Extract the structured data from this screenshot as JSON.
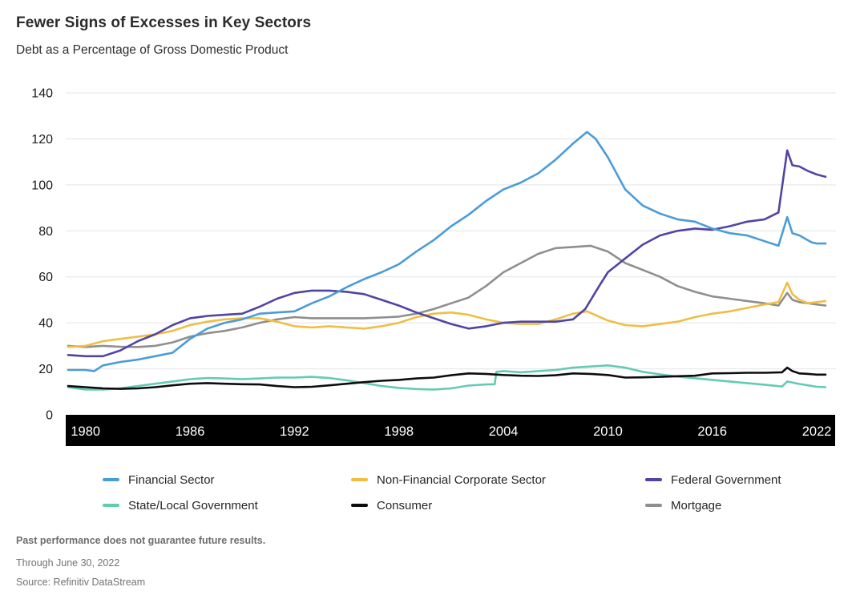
{
  "title": "Fewer Signs of Excesses in Key Sectors",
  "subtitle": "Debt as a Percentage of Gross Domestic Product",
  "footer": {
    "disclaimer": "Past performance does not guarantee future results.",
    "through": "Through June 30, 2022",
    "source": "Source: Refinitiv DataStream"
  },
  "legend": {
    "items": [
      {
        "label": "Financial Sector",
        "color": "#4A9CD9"
      },
      {
        "label": "Non-Financial Corporate Sector",
        "color": "#F0BE45"
      },
      {
        "label": "Federal Government",
        "color": "#4F45A4"
      },
      {
        "label": "State/Local Government",
        "color": "#63CBB2"
      },
      {
        "label": "Consumer",
        "color": "#0D0D0D"
      },
      {
        "label": "Mortgage",
        "color": "#8F8F8F"
      }
    ]
  },
  "chart_data": {
    "type": "line",
    "title": "Fewer Signs of Excesses in Key Sectors",
    "subtitle": "Debt as a Percentage of Gross Domestic Product",
    "xlabel": "",
    "ylabel": "Debt as % of GDP",
    "ylim": [
      0,
      140
    ],
    "x_range_years": [
      1979,
      2022.5
    ],
    "y_ticks": [
      0,
      20,
      40,
      60,
      80,
      100,
      120,
      140
    ],
    "x_ticks": [
      1980,
      1986,
      1992,
      1998,
      2004,
      2010,
      2016,
      2022
    ],
    "grid": "horizontal",
    "gridline_color": "#E4E4E4",
    "axis_band_color": "#000000",
    "axis_band_text_color": "#FFFFFF",
    "legend_position": "bottom",
    "series": [
      {
        "name": "Financial Sector",
        "color": "#4A9CD9",
        "x": [
          1979,
          1980,
          1980.5,
          1981,
          1982,
          1983,
          1984,
          1985,
          1986,
          1987,
          1988,
          1989,
          1990,
          1991,
          1992,
          1993,
          1994,
          1995,
          1996,
          1997,
          1998,
          1999,
          2000,
          2001,
          2002,
          2003,
          2004,
          2005,
          2006,
          2007,
          2008,
          2008.8,
          2009.3,
          2010,
          2011,
          2012,
          2013,
          2014,
          2015,
          2016,
          2017,
          2018,
          2019,
          2019.8,
          2020.3,
          2020.6,
          2021,
          2021.7,
          2022,
          2022.5
        ],
        "values": [
          19.5,
          19.5,
          19,
          21.5,
          23,
          24,
          25.5,
          27,
          33,
          37.5,
          40,
          41.5,
          44,
          44.5,
          45,
          48.5,
          51.5,
          55.5,
          59,
          62,
          65.5,
          71,
          76,
          82,
          87,
          93,
          98,
          101,
          105,
          111,
          118,
          123,
          120,
          112,
          98,
          91,
          87.5,
          85,
          84,
          81,
          79,
          78,
          75.5,
          73.5,
          86,
          79,
          78,
          75,
          74.5,
          74.5
        ]
      },
      {
        "name": "Non-Financial Corporate Sector",
        "color": "#F0BE45",
        "x": [
          1979,
          1980,
          1981,
          1982,
          1983,
          1984,
          1985,
          1986,
          1987,
          1988,
          1989,
          1990,
          1991,
          1992,
          1993,
          1994,
          1995,
          1996,
          1997,
          1998,
          1999,
          2000,
          2001,
          2002,
          2003,
          2004,
          2005,
          2006,
          2007,
          2008,
          2008.8,
          2010,
          2011,
          2012,
          2013,
          2014,
          2015,
          2016,
          2017,
          2018,
          2019,
          2019.8,
          2020.3,
          2020.6,
          2021,
          2021.5,
          2022,
          2022.5
        ],
        "values": [
          29.5,
          30,
          32,
          33,
          34,
          35,
          36.5,
          39,
          40.5,
          41.5,
          42,
          42,
          40.5,
          38.5,
          38,
          38.5,
          38,
          37.5,
          38.5,
          40,
          42.5,
          44,
          44.5,
          43.5,
          41.5,
          40,
          39.5,
          39.5,
          41.5,
          44,
          45,
          41,
          39,
          38.5,
          39.5,
          40.5,
          42.5,
          44,
          45,
          46.5,
          48,
          49,
          57.5,
          52.5,
          50,
          48.5,
          49,
          49.5
        ]
      },
      {
        "name": "Federal Government",
        "color": "#4F45A4",
        "x": [
          1979,
          1980,
          1981,
          1982,
          1983,
          1984,
          1985,
          1986,
          1987,
          1988,
          1989,
          1990,
          1991,
          1992,
          1993,
          1994,
          1995,
          1996,
          1997,
          1998,
          1999,
          2000,
          2001,
          2002,
          2003,
          2004,
          2005,
          2006,
          2007,
          2008,
          2008.7,
          2009.5,
          2010,
          2011,
          2012,
          2013,
          2014,
          2015,
          2016,
          2017,
          2018,
          2019,
          2019.8,
          2020.3,
          2020.6,
          2021,
          2021.5,
          2022,
          2022.5
        ],
        "values": [
          26,
          25.5,
          25.5,
          28,
          32,
          35,
          39,
          42,
          43,
          43.5,
          44,
          47,
          50.5,
          53,
          54,
          54,
          53.5,
          52.5,
          50,
          47.5,
          44.5,
          42,
          39.5,
          37.5,
          38.5,
          40,
          40.5,
          40.5,
          40.5,
          41.5,
          46,
          56,
          62,
          68,
          74,
          78,
          80,
          81,
          80.5,
          82,
          84,
          85,
          88,
          115,
          108.5,
          108,
          106,
          104.5,
          103.5
        ]
      },
      {
        "name": "State/Local Government",
        "color": "#63CBB2",
        "x": [
          1979,
          1980,
          1981,
          1982,
          1983,
          1984,
          1985,
          1986,
          1987,
          1988,
          1989,
          1990,
          1991,
          1992,
          1993,
          1994,
          1995,
          1996,
          1997,
          1998,
          1999,
          2000,
          2001,
          2002,
          2003,
          2003.5,
          2003.6,
          2004,
          2005,
          2006,
          2007,
          2008,
          2009,
          2010,
          2011,
          2012,
          2013,
          2014,
          2015,
          2016,
          2017,
          2018,
          2019,
          2020,
          2020.3,
          2021,
          2021.5,
          2022,
          2022.5
        ],
        "values": [
          12,
          11,
          11,
          11.5,
          12.5,
          13.5,
          14.5,
          15.5,
          16,
          15.8,
          15.5,
          15.8,
          16.2,
          16.2,
          16.5,
          16,
          15,
          13.8,
          12.5,
          11.7,
          11.2,
          11,
          11.5,
          12.7,
          13.2,
          13.3,
          18.7,
          19,
          18.5,
          19,
          19.5,
          20.5,
          21,
          21.5,
          20.5,
          18.7,
          17.6,
          16.6,
          15.9,
          15.2,
          14.5,
          13.8,
          13.1,
          12.3,
          14.5,
          13.4,
          12.8,
          12.2,
          12
        ]
      },
      {
        "name": "Consumer",
        "color": "#0D0D0D",
        "x": [
          1979,
          1980,
          1981,
          1982,
          1983,
          1984,
          1985,
          1986,
          1987,
          1988,
          1989,
          1990,
          1991,
          1992,
          1993,
          1994,
          1995,
          1996,
          1997,
          1998,
          1999,
          2000,
          2001,
          2002,
          2003,
          2004,
          2005,
          2006,
          2007,
          2008,
          2009,
          2010,
          2011,
          2012,
          2013,
          2014,
          2015,
          2016,
          2017,
          2018,
          2019,
          2020,
          2020.3,
          2020.6,
          2021,
          2021.5,
          2022,
          2022.5
        ],
        "values": [
          12.5,
          12,
          11.5,
          11.3,
          11.5,
          12,
          12.8,
          13.5,
          13.8,
          13.5,
          13.3,
          13.2,
          12.5,
          12,
          12.2,
          12.8,
          13.5,
          14.2,
          14.8,
          15.2,
          15.8,
          16.2,
          17.2,
          18,
          17.8,
          17.3,
          17,
          16.9,
          17.2,
          18,
          17.8,
          17.3,
          16.2,
          16.3,
          16.5,
          16.8,
          17,
          18,
          18.1,
          18.3,
          18.3,
          18.5,
          20.5,
          19,
          18,
          17.8,
          17.5,
          17.5
        ]
      },
      {
        "name": "Mortgage",
        "color": "#8F8F8F",
        "x": [
          1979,
          1980,
          1981,
          1982,
          1983,
          1984,
          1985,
          1986,
          1987,
          1988,
          1989,
          1990,
          1991,
          1992,
          1993,
          1994,
          1995,
          1996,
          1997,
          1998,
          1999,
          2000,
          2001,
          2002,
          2003,
          2004,
          2005,
          2006,
          2007,
          2008,
          2009,
          2010,
          2011,
          2012,
          2013,
          2014,
          2015,
          2016,
          2017,
          2018,
          2019,
          2019.8,
          2020.3,
          2020.6,
          2021,
          2021.5,
          2022,
          2022.5
        ],
        "values": [
          30,
          29.5,
          30,
          29.6,
          29.5,
          30,
          31.5,
          34,
          35.5,
          36.5,
          38,
          40,
          41.5,
          42.5,
          42,
          42,
          42,
          42,
          42.3,
          42.7,
          44,
          46,
          48.5,
          51,
          56,
          62,
          66,
          70,
          72.5,
          73,
          73.5,
          71,
          66,
          63,
          60,
          56,
          53.5,
          51.5,
          50.5,
          49.5,
          48.5,
          47.5,
          53,
          50,
          49,
          48.5,
          48,
          47.5
        ]
      }
    ]
  }
}
